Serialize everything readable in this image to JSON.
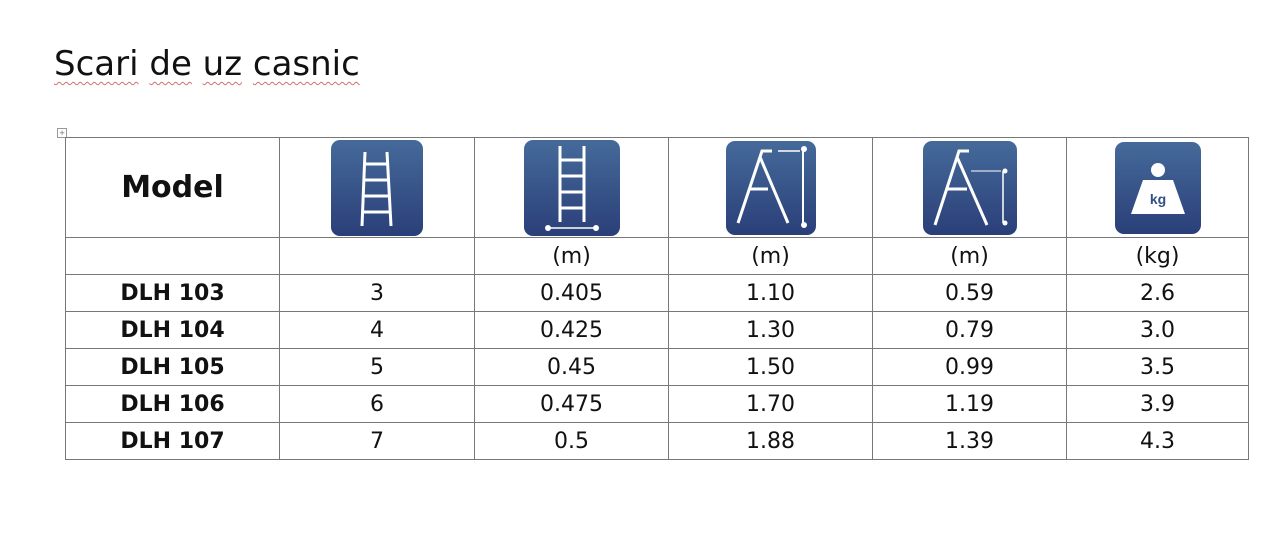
{
  "title": [
    "Scari",
    "de",
    "uz",
    "casnic"
  ],
  "table": {
    "header": "Model",
    "icons": [
      "ladder-steps-icon",
      "ladder-width-icon",
      "stepladder-height-icon",
      "stepladder-platform-height-icon",
      "weight-kg-icon"
    ],
    "icon_kg_label": "kg",
    "icon_color": "#2f4f86",
    "units": [
      "",
      "",
      "(m)",
      "(m)",
      "(m)",
      "(kg)"
    ],
    "rows": [
      [
        "DLH 103",
        "3",
        "0.405",
        "1.10",
        "0.59",
        "2.6"
      ],
      [
        "DLH 104",
        "4",
        "0.425",
        "1.30",
        "0.79",
        "3.0"
      ],
      [
        "DLH 105",
        "5",
        "0.45",
        "1.50",
        "0.99",
        "3.5"
      ],
      [
        "DLH 106",
        "6",
        "0.475",
        "1.70",
        "1.19",
        "3.9"
      ],
      [
        "DLH 107",
        "7",
        "0.5",
        "1.88",
        "1.39",
        "4.3"
      ]
    ]
  }
}
